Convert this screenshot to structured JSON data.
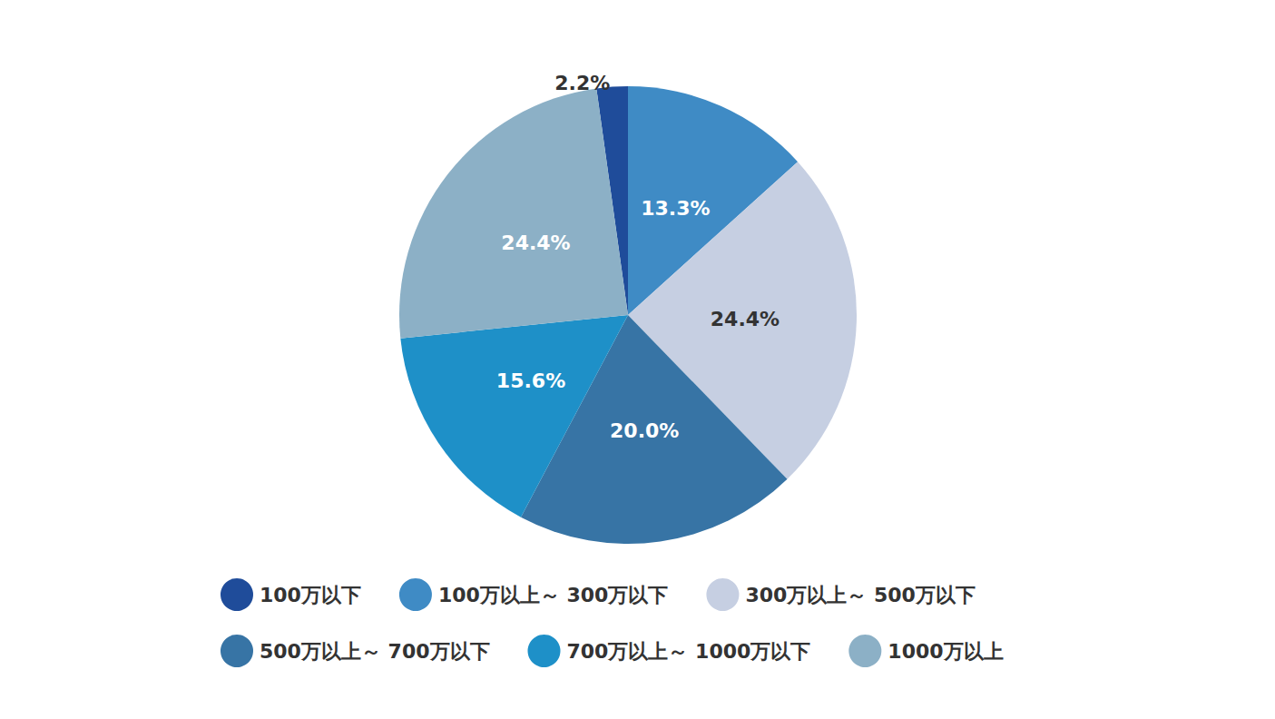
{
  "chart_data": {
    "type": "pie",
    "categories": [
      "100万以下",
      "100万以上～ 300万以下",
      "300万以上～ 500万以下",
      "500万以上～ 700万以下",
      "700万以上～ 1000万以下",
      "1000万以上"
    ],
    "values": [
      2.2,
      13.3,
      24.4,
      20.0,
      15.6,
      24.4
    ],
    "value_labels": [
      "2.2%",
      "13.3%",
      "24.4%",
      "20.0%",
      "15.6%",
      "24.4%"
    ],
    "colors": [
      "#1f4c9a",
      "#3f8bc5",
      "#c6cfe2",
      "#3774a5",
      "#1e90c8",
      "#8cb0c6"
    ],
    "data_labels": true,
    "legend": "bottom"
  }
}
